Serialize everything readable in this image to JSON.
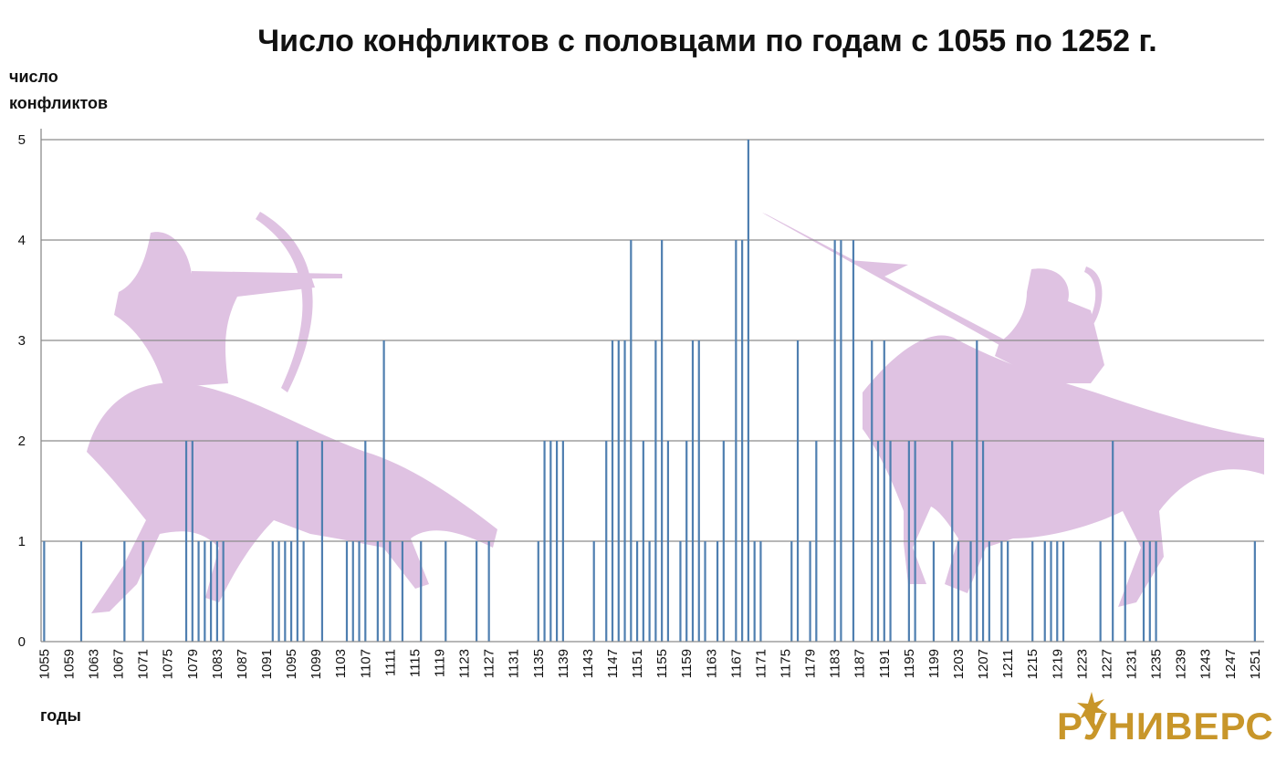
{
  "chart_data": {
    "type": "bar",
    "title": "Число конфликтов с половцами по годам с 1055 по 1252 г.",
    "ylabel_line1": "число",
    "ylabel_line2": "конфликтов",
    "xlabel": "годы",
    "ylim": [
      0,
      5
    ],
    "y_ticks": [
      0,
      1,
      2,
      3,
      4,
      5
    ],
    "x_range": [
      1055,
      1252
    ],
    "x_tick_step": 4,
    "grid": true,
    "bar_color": "#4f7fb0",
    "x": [
      1055,
      1061,
      1068,
      1071,
      1078,
      1079,
      1080,
      1081,
      1082,
      1083,
      1084,
      1092,
      1093,
      1094,
      1095,
      1096,
      1097,
      1100,
      1104,
      1105,
      1106,
      1107,
      1109,
      1110,
      1111,
      1113,
      1116,
      1120,
      1125,
      1127,
      1135,
      1136,
      1137,
      1138,
      1139,
      1144,
      1146,
      1147,
      1148,
      1149,
      1150,
      1151,
      1152,
      1153,
      1154,
      1155,
      1156,
      1158,
      1159,
      1160,
      1161,
      1162,
      1164,
      1165,
      1167,
      1168,
      1169,
      1170,
      1171,
      1176,
      1177,
      1179,
      1180,
      1183,
      1184,
      1186,
      1189,
      1190,
      1191,
      1192,
      1195,
      1196,
      1199,
      1202,
      1203,
      1205,
      1206,
      1207,
      1208,
      1210,
      1211,
      1215,
      1217,
      1218,
      1219,
      1220,
      1226,
      1228,
      1230,
      1233,
      1234,
      1235,
      1251
    ],
    "values": [
      1,
      1,
      1,
      1,
      2,
      2,
      1,
      1,
      1,
      1,
      1,
      1,
      1,
      1,
      1,
      2,
      1,
      2,
      1,
      1,
      1,
      2,
      1,
      3,
      1,
      1,
      1,
      1,
      1,
      1,
      1,
      2,
      2,
      2,
      2,
      1,
      2,
      3,
      3,
      3,
      4,
      1,
      2,
      1,
      3,
      4,
      2,
      1,
      2,
      3,
      3,
      1,
      1,
      2,
      4,
      4,
      5,
      1,
      1,
      1,
      3,
      1,
      2,
      4,
      4,
      4,
      3,
      2,
      3,
      2,
      2,
      2,
      1,
      2,
      1,
      1,
      3,
      2,
      1,
      1,
      1,
      1,
      1,
      1,
      1,
      1,
      1,
      2,
      1,
      1,
      1,
      1,
      1
    ]
  },
  "logo": {
    "text": "РУНИВЕРС",
    "color": "#c8962a"
  },
  "decoration": {
    "silhouette_color": "#dfc2e2",
    "silhouettes": [
      "horse-archer",
      "horse-lancer"
    ]
  }
}
